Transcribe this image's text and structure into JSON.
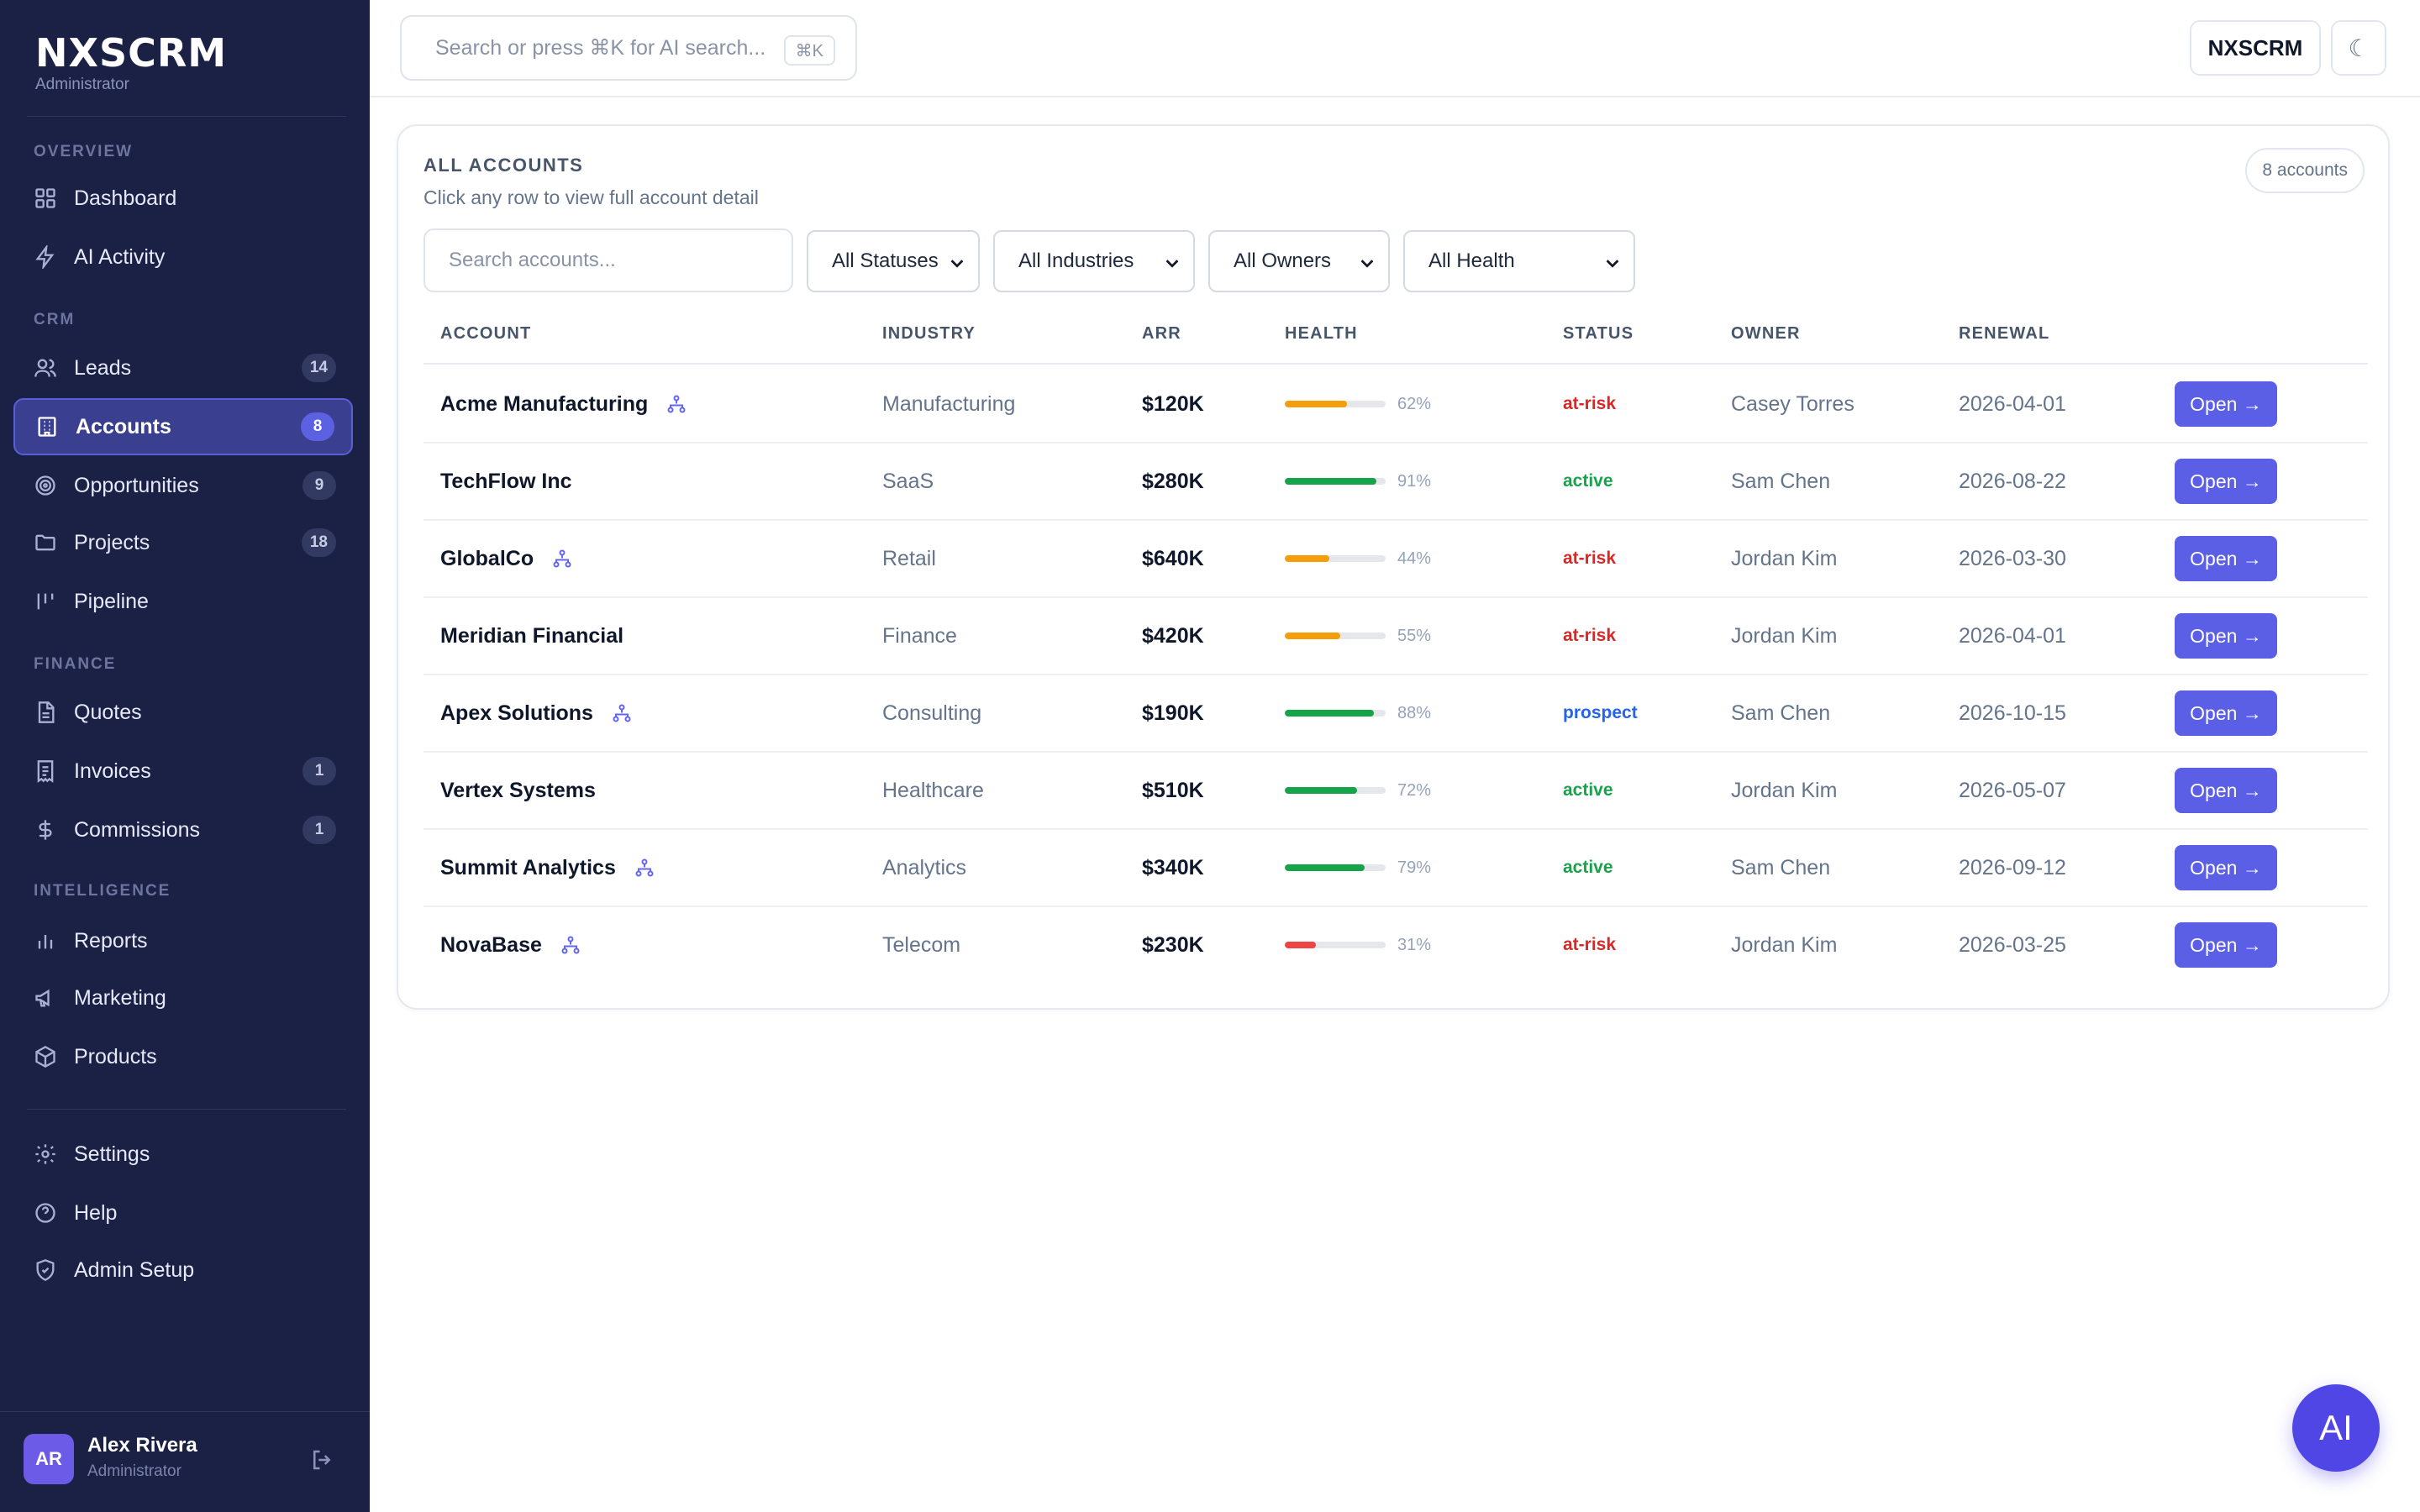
{
  "brand": {
    "name": "NXSCRM",
    "role": "Administrator"
  },
  "sidebar": {
    "sections": [
      "OVERVIEW",
      "CRM",
      "FINANCE",
      "INTELLIGENCE"
    ],
    "items": [
      {
        "label": "Dashboard",
        "icon": "grid-icon",
        "badge": null
      },
      {
        "label": "AI Activity",
        "icon": "bolt-icon",
        "badge": null
      },
      {
        "label": "Leads",
        "icon": "users-icon",
        "badge": "14"
      },
      {
        "label": "Accounts",
        "icon": "building-icon",
        "badge": "8",
        "active": true
      },
      {
        "label": "Opportunities",
        "icon": "target-icon",
        "badge": "9"
      },
      {
        "label": "Projects",
        "icon": "folder-icon",
        "badge": "18"
      },
      {
        "label": "Pipeline",
        "icon": "pipeline-icon",
        "badge": null
      },
      {
        "label": "Quotes",
        "icon": "document-icon",
        "badge": null
      },
      {
        "label": "Invoices",
        "icon": "invoice-icon",
        "badge": "1"
      },
      {
        "label": "Commissions",
        "icon": "dollar-icon",
        "badge": "1"
      },
      {
        "label": "Reports",
        "icon": "bar-chart-icon",
        "badge": null
      },
      {
        "label": "Marketing",
        "icon": "megaphone-icon",
        "badge": null
      },
      {
        "label": "Products",
        "icon": "box-icon",
        "badge": null
      },
      {
        "label": "Settings",
        "icon": "gear-icon",
        "badge": null
      },
      {
        "label": "Help",
        "icon": "help-icon",
        "badge": null
      },
      {
        "label": "Admin Setup",
        "icon": "shield-icon",
        "badge": null
      }
    ]
  },
  "user": {
    "initials": "AR",
    "name": "Alex Rivera",
    "role": "Administrator"
  },
  "topbar": {
    "search_placeholder": "Search or press ⌘K for AI search...",
    "shortcut": "⌘K",
    "workspace": "NXSCRM",
    "theme_icon": "☾"
  },
  "card": {
    "title": "ALL ACCOUNTS",
    "subtitle": "Click any row to view full account detail",
    "count": "8 accounts",
    "search_placeholder": "Search accounts...",
    "filters": [
      "All Statuses",
      "All Industries",
      "All Owners",
      "All Health"
    ]
  },
  "table": {
    "columns": [
      "ACCOUNT",
      "INDUSTRY",
      "ARR",
      "HEALTH",
      "STATUS",
      "OWNER",
      "RENEWAL"
    ],
    "action_label": "Open →",
    "status_colors": {
      "at-risk": "#dc2626",
      "active": "#16a34a",
      "prospect": "#2563eb"
    },
    "health_colors": {
      "high": "#16a34a",
      "mid": "#f59e0b",
      "low": "#ef4444"
    },
    "rows": [
      {
        "account": "Acme Manufacturing",
        "hierarchy": true,
        "industry": "Manufacturing",
        "arr": "$120K",
        "health": 62,
        "health_label": "62%",
        "status": "at-risk",
        "owner": "Casey Torres",
        "renewal": "2026-04-01"
      },
      {
        "account": "TechFlow Inc",
        "hierarchy": false,
        "industry": "SaaS",
        "arr": "$280K",
        "health": 91,
        "health_label": "91%",
        "status": "active",
        "owner": "Sam Chen",
        "renewal": "2026-08-22"
      },
      {
        "account": "GlobalCo",
        "hierarchy": true,
        "industry": "Retail",
        "arr": "$640K",
        "health": 44,
        "health_label": "44%",
        "status": "at-risk",
        "owner": "Jordan Kim",
        "renewal": "2026-03-30"
      },
      {
        "account": "Meridian Financial",
        "hierarchy": false,
        "industry": "Finance",
        "arr": "$420K",
        "health": 55,
        "health_label": "55%",
        "status": "at-risk",
        "owner": "Jordan Kim",
        "renewal": "2026-04-01"
      },
      {
        "account": "Apex Solutions",
        "hierarchy": true,
        "industry": "Consulting",
        "arr": "$190K",
        "health": 88,
        "health_label": "88%",
        "status": "prospect",
        "owner": "Sam Chen",
        "renewal": "2026-10-15"
      },
      {
        "account": "Vertex Systems",
        "hierarchy": false,
        "industry": "Healthcare",
        "arr": "$510K",
        "health": 72,
        "health_label": "72%",
        "status": "active",
        "owner": "Jordan Kim",
        "renewal": "2026-05-07"
      },
      {
        "account": "Summit Analytics",
        "hierarchy": true,
        "industry": "Analytics",
        "arr": "$340K",
        "health": 79,
        "health_label": "79%",
        "status": "active",
        "owner": "Sam Chen",
        "renewal": "2026-09-12"
      },
      {
        "account": "NovaBase",
        "hierarchy": true,
        "industry": "Telecom",
        "arr": "$230K",
        "health": 31,
        "health_label": "31%",
        "status": "at-risk",
        "owner": "Jordan Kim",
        "renewal": "2026-03-25"
      }
    ]
  },
  "fab": {
    "label": "AI"
  }
}
